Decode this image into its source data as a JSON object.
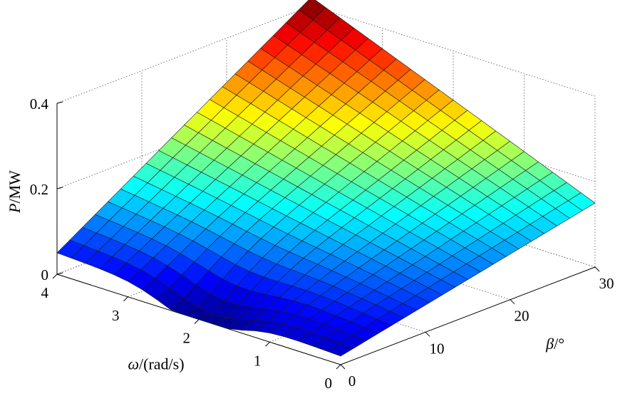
{
  "chart_data": {
    "type": "surface",
    "title": "",
    "xlabel": {
      "symbol": "β",
      "unit": "/°"
    },
    "ylabel": {
      "symbol": "ω",
      "unit": "/(rad/s)"
    },
    "zlabel": {
      "symbol": "P",
      "unit": "/MW"
    },
    "x_ticks": [
      "0",
      "10",
      "20",
      "30"
    ],
    "y_ticks": [
      "0",
      "1",
      "2",
      "3",
      "4"
    ],
    "z_ticks": [
      "0",
      "0.2",
      "0.4"
    ],
    "xlim": [
      0,
      30
    ],
    "ylim": [
      0,
      4
    ],
    "zlim": [
      0,
      0.4
    ],
    "grid": true,
    "colormap": "jet",
    "corner_values": [
      {
        "beta": 0,
        "omega": 0,
        "P": 0.02
      },
      {
        "beta": 0,
        "omega": 4,
        "P": 0.05
      },
      {
        "beta": 30,
        "omega": 0,
        "P": 0.15
      },
      {
        "beta": 30,
        "omega": 4,
        "P": 0.42
      }
    ],
    "grid_lines_per_axis": 21
  }
}
